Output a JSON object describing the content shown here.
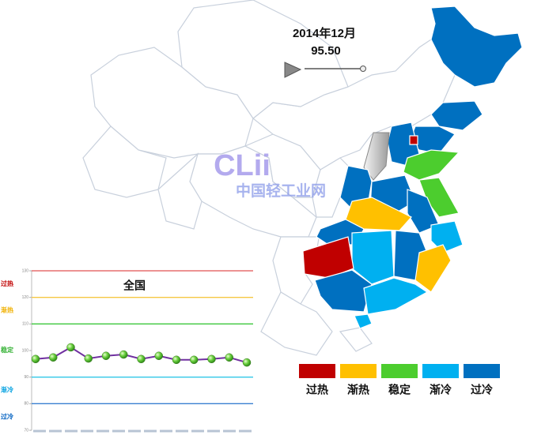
{
  "header": {
    "date": "2014年12月",
    "value": "95.50"
  },
  "watermark": {
    "logo": "CLii",
    "name": "中国轻工业网"
  },
  "legend": [
    {
      "label": "过热",
      "color": "#c00000"
    },
    {
      "label": "渐热",
      "color": "#ffc000"
    },
    {
      "label": "稳定",
      "color": "#4ccd2e"
    },
    {
      "label": "渐冷",
      "color": "#00b0f0"
    },
    {
      "label": "过冷",
      "color": "#0070c0"
    }
  ],
  "chart_data": {
    "type": "line",
    "title": "全国",
    "series": [
      {
        "name": null,
        "color": "#7030a0",
        "values": [
          96.8,
          97.4,
          101.2,
          97.0,
          98.0,
          98.5,
          96.8,
          98.0,
          96.5,
          96.5,
          96.8,
          97.4,
          95.5
        ]
      }
    ],
    "ylim": [
      70,
      130
    ],
    "yticks": [
      70,
      80,
      90,
      100,
      110,
      120,
      130
    ],
    "reference_lines": [
      {
        "value": 130,
        "color": "#e05050"
      },
      {
        "value": 120,
        "color": "#f5c842"
      },
      {
        "value": 110,
        "color": "#3cc83c"
      },
      {
        "value": 90,
        "color": "#30c8e8"
      },
      {
        "value": 80,
        "color": "#3a7fd0"
      }
    ],
    "bands": [
      {
        "label": "过热",
        "color": "#c00000"
      },
      {
        "label": "渐热",
        "color": "#f0b000"
      },
      {
        "label": "稳定",
        "color": "#30b030"
      },
      {
        "label": "渐冷",
        "color": "#00a0e0"
      },
      {
        "label": "过冷",
        "color": "#0060c0"
      }
    ]
  }
}
